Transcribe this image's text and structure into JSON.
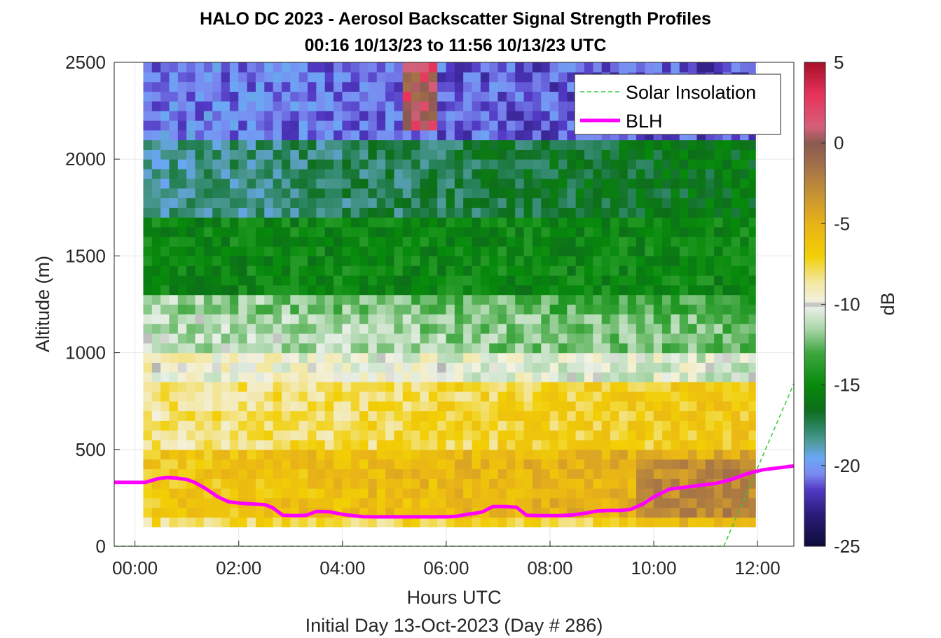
{
  "chart_data": {
    "type": "heatmap",
    "title": "HALO DC 2023 - Aerosol Backscatter Signal Strength Profiles",
    "subtitle": "00:16 10/13/23 to 11:56 10/13/23  UTC",
    "xlabel": "Hours UTC",
    "xlabel2": "Initial Day 13-Oct-2023 (Day # 286)",
    "ylabel": "Altitude (m)",
    "xlim": [
      -0.4,
      12.7
    ],
    "ylim": [
      0,
      2500
    ],
    "x_ticks": [
      0,
      2,
      4,
      6,
      8,
      10,
      12
    ],
    "x_tick_labels": [
      "00:00",
      "02:00",
      "04:00",
      "06:00",
      "08:00",
      "10:00",
      "12:00"
    ],
    "y_ticks": [
      0,
      500,
      1000,
      1500,
      2000,
      2500
    ],
    "y_tick_labels": [
      "0",
      "500",
      "1000",
      "1500",
      "2000",
      "2500"
    ],
    "grid": true,
    "colorbar": {
      "label": "dB",
      "range": [
        -25,
        5
      ],
      "ticks": [
        5,
        0,
        -5,
        -10,
        -15,
        -20,
        -25
      ],
      "tick_labels": [
        "5",
        "0",
        "-5",
        "-10",
        "-15",
        "-20",
        "-25"
      ],
      "colors": [
        {
          "v": -25,
          "c": "#0d0d3a"
        },
        {
          "v": -23,
          "c": "#2a1c7a"
        },
        {
          "v": -21.5,
          "c": "#5238c4"
        },
        {
          "v": -20.5,
          "c": "#7a8af0"
        },
        {
          "v": -19.5,
          "c": "#6aa8f5"
        },
        {
          "v": -18.5,
          "c": "#4f9a9a"
        },
        {
          "v": -17.5,
          "c": "#27825a"
        },
        {
          "v": -16.5,
          "c": "#0d6e1a"
        },
        {
          "v": -15,
          "c": "#078a0b"
        },
        {
          "v": -13,
          "c": "#3ea63e"
        },
        {
          "v": -11.5,
          "c": "#a9d6a9"
        },
        {
          "v": -10.2,
          "c": "#e8efe6"
        },
        {
          "v": -10,
          "c": "#b5b5b5"
        },
        {
          "v": -9.8,
          "c": "#f3f1e0"
        },
        {
          "v": -8.5,
          "c": "#f3e69a"
        },
        {
          "v": -7,
          "c": "#f2cf05"
        },
        {
          "v": -5,
          "c": "#e9b317"
        },
        {
          "v": -3,
          "c": "#c38f36"
        },
        {
          "v": -1,
          "c": "#9b6a4c"
        },
        {
          "v": 0,
          "c": "#8a5a50"
        },
        {
          "v": 1,
          "c": "#d4607a"
        },
        {
          "v": 3,
          "c": "#e8335a"
        },
        {
          "v": 5,
          "c": "#a8102a"
        }
      ]
    },
    "heatmap": {
      "x_start": 0.16,
      "dx": 0.1667,
      "y_start": 100,
      "dy": 50,
      "gaps_x": [
        [
          0.16,
          0.62
        ]
      ],
      "layers": [
        {
          "alt": [
            100,
            150
          ],
          "early": -8,
          "late": -7
        },
        {
          "alt": [
            150,
            500
          ],
          "early": -6.5,
          "late": -4.5
        },
        {
          "alt": [
            500,
            850
          ],
          "early": -8.5,
          "late": -6.5
        },
        {
          "alt": [
            850,
            1000
          ],
          "early": -9.6,
          "late": -10.6
        },
        {
          "alt": [
            1000,
            1200
          ],
          "early": -11.0,
          "late": -12.5
        },
        {
          "alt": [
            1200,
            1300
          ],
          "early": -11.5,
          "late": -13.5
        },
        {
          "alt": [
            1300,
            1700
          ],
          "early": -15.2,
          "late": -15.0
        },
        {
          "alt": [
            1700,
            2100
          ],
          "early": -18.5,
          "late": -16.0
        },
        {
          "alt": [
            2100,
            2500
          ],
          "early": -20.5,
          "late": -21.5
        }
      ]
    },
    "series": [
      {
        "name": "Solar Insolation",
        "style": "dashed",
        "color": "#33cc33",
        "x": [
          -0.4,
          11.35,
          12.7
        ],
        "y": [
          0,
          0,
          840
        ]
      },
      {
        "name": "BLH",
        "style": "solid",
        "color": "#ff00ff",
        "x": [
          -0.4,
          -0.2,
          0.0,
          0.2,
          0.45,
          0.62,
          0.8,
          1.0,
          1.15,
          1.35,
          1.6,
          1.8,
          2.05,
          2.3,
          2.5,
          2.65,
          2.85,
          3.1,
          3.3,
          3.5,
          3.75,
          4.0,
          4.2,
          4.4,
          4.6,
          4.8,
          5.0,
          5.2,
          5.5,
          5.8,
          6.0,
          6.2,
          6.4,
          6.55,
          6.7,
          6.9,
          7.15,
          7.35,
          7.55,
          7.8,
          8.0,
          8.2,
          8.45,
          8.7,
          8.9,
          9.15,
          9.35,
          9.55,
          9.8,
          10.0,
          10.3,
          10.6,
          10.9,
          11.2,
          11.5,
          11.8,
          12.1,
          12.4,
          12.7
        ],
        "y": [
          330,
          330,
          330,
          330,
          350,
          355,
          352,
          345,
          330,
          300,
          255,
          230,
          222,
          218,
          215,
          200,
          160,
          158,
          160,
          180,
          178,
          165,
          158,
          153,
          152,
          152,
          152,
          152,
          152,
          152,
          152,
          155,
          165,
          170,
          178,
          205,
          205,
          202,
          160,
          158,
          158,
          158,
          162,
          172,
          182,
          185,
          185,
          190,
          220,
          255,
          295,
          305,
          315,
          325,
          345,
          375,
          395,
          405,
          415
        ]
      }
    ],
    "legend": {
      "position": "top-right",
      "entries": [
        "Solar Insolation",
        "BLH"
      ]
    }
  }
}
